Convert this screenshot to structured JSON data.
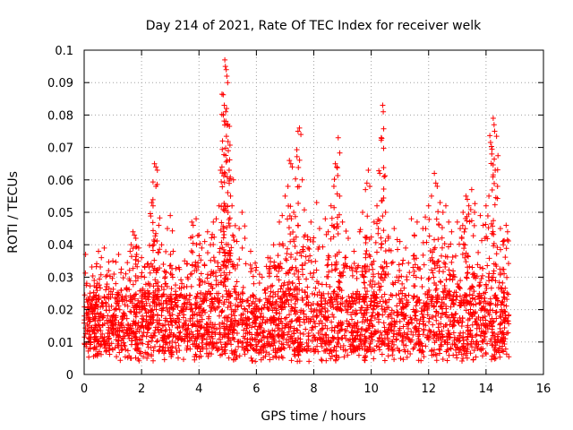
{
  "chart_data": {
    "type": "scatter",
    "title": "Day 214 of 2021, Rate Of TEC Index for receiver welk",
    "xlabel": "GPS time / hours",
    "ylabel": "ROTI / TECUs",
    "xlim": [
      0,
      16
    ],
    "ylim": [
      0,
      0.1
    ],
    "xticks": [
      0,
      2,
      4,
      6,
      8,
      10,
      12,
      14,
      16
    ],
    "xtick_labels": [
      "0",
      "2",
      "4",
      "6",
      "8",
      "10",
      "12",
      "14",
      "16"
    ],
    "yticks": [
      0,
      0.01,
      0.02,
      0.03,
      0.04,
      0.05,
      0.06,
      0.07,
      0.08,
      0.09,
      0.1
    ],
    "ytick_labels": [
      "0",
      "0.01",
      "0.02",
      "0.03",
      "0.04",
      "0.05",
      "0.06",
      "0.07",
      "0.08",
      "0.09",
      "0.1"
    ],
    "grid": true,
    "marker": "+",
    "color": "#ff0000",
    "x_data_range": [
      0,
      14.8
    ],
    "series": [
      {
        "name": "ROTI",
        "points": [
          [
            0.05,
            0.037
          ],
          [
            0.2,
            0.024
          ],
          [
            0.35,
            0.029
          ],
          [
            0.5,
            0.038
          ],
          [
            0.6,
            0.036
          ],
          [
            0.7,
            0.039
          ],
          [
            0.85,
            0.032
          ],
          [
            1.0,
            0.035
          ],
          [
            1.1,
            0.028
          ],
          [
            1.2,
            0.037
          ],
          [
            1.3,
            0.026
          ],
          [
            1.45,
            0.031
          ],
          [
            1.6,
            0.038
          ],
          [
            1.7,
            0.044
          ],
          [
            1.75,
            0.043
          ],
          [
            1.8,
            0.042
          ],
          [
            1.9,
            0.039
          ],
          [
            2.0,
            0.036
          ],
          [
            2.1,
            0.03
          ],
          [
            2.2,
            0.034
          ],
          [
            2.35,
            0.053
          ],
          [
            2.4,
            0.052
          ],
          [
            2.45,
            0.065
          ],
          [
            2.5,
            0.064
          ],
          [
            2.55,
            0.063
          ],
          [
            2.5,
            0.058
          ],
          [
            2.6,
            0.046
          ],
          [
            2.7,
            0.04
          ],
          [
            2.9,
            0.045
          ],
          [
            3.0,
            0.049
          ],
          [
            3.1,
            0.038
          ],
          [
            3.3,
            0.033
          ],
          [
            3.5,
            0.035
          ],
          [
            3.6,
            0.03
          ],
          [
            3.75,
            0.047
          ],
          [
            3.8,
            0.046
          ],
          [
            3.9,
            0.048
          ],
          [
            4.0,
            0.043
          ],
          [
            4.1,
            0.039
          ],
          [
            4.2,
            0.041
          ],
          [
            4.3,
            0.044
          ],
          [
            4.4,
            0.04
          ],
          [
            4.5,
            0.047
          ],
          [
            4.6,
            0.048
          ],
          [
            4.7,
            0.052
          ],
          [
            4.75,
            0.063
          ],
          [
            4.8,
            0.064
          ],
          [
            4.82,
            0.072
          ],
          [
            4.85,
            0.08
          ],
          [
            4.88,
            0.083
          ],
          [
            4.9,
            0.097
          ],
          [
            4.92,
            0.095
          ],
          [
            4.95,
            0.094
          ],
          [
            4.97,
            0.092
          ],
          [
            5.0,
            0.09
          ],
          [
            4.93,
            0.081
          ],
          [
            4.96,
            0.082
          ],
          [
            4.98,
            0.066
          ],
          [
            5.05,
            0.063
          ],
          [
            5.1,
            0.055
          ],
          [
            5.15,
            0.052
          ],
          [
            5.2,
            0.06
          ],
          [
            5.4,
            0.045
          ],
          [
            5.5,
            0.05
          ],
          [
            5.6,
            0.042
          ],
          [
            5.8,
            0.038
          ],
          [
            6.0,
            0.033
          ],
          [
            6.2,
            0.03
          ],
          [
            6.4,
            0.036
          ],
          [
            6.6,
            0.04
          ],
          [
            6.8,
            0.047
          ],
          [
            6.9,
            0.049
          ],
          [
            7.0,
            0.055
          ],
          [
            7.1,
            0.058
          ],
          [
            7.15,
            0.066
          ],
          [
            7.2,
            0.065
          ],
          [
            7.25,
            0.064
          ],
          [
            7.3,
            0.05
          ],
          [
            7.45,
            0.075
          ],
          [
            7.5,
            0.076
          ],
          [
            7.55,
            0.074
          ],
          [
            7.6,
            0.06
          ],
          [
            7.7,
            0.043
          ],
          [
            7.8,
            0.039
          ],
          [
            7.9,
            0.047
          ],
          [
            8.1,
            0.053
          ],
          [
            8.2,
            0.045
          ],
          [
            8.4,
            0.048
          ],
          [
            8.5,
            0.044
          ],
          [
            8.6,
            0.052
          ],
          [
            8.7,
            0.058
          ],
          [
            8.75,
            0.065
          ],
          [
            8.8,
            0.064
          ],
          [
            8.85,
            0.073
          ],
          [
            8.9,
            0.055
          ],
          [
            9.0,
            0.047
          ],
          [
            9.2,
            0.042
          ],
          [
            9.4,
            0.038
          ],
          [
            9.6,
            0.044
          ],
          [
            9.7,
            0.05
          ],
          [
            9.8,
            0.057
          ],
          [
            9.85,
            0.059
          ],
          [
            9.9,
            0.063
          ],
          [
            9.95,
            0.058
          ],
          [
            10.1,
            0.047
          ],
          [
            10.2,
            0.052
          ],
          [
            10.3,
            0.062
          ],
          [
            10.35,
            0.073
          ],
          [
            10.4,
            0.083
          ],
          [
            10.42,
            0.081
          ],
          [
            10.45,
            0.061
          ],
          [
            10.5,
            0.05
          ],
          [
            10.6,
            0.042
          ],
          [
            10.8,
            0.045
          ],
          [
            11.0,
            0.041
          ],
          [
            11.2,
            0.039
          ],
          [
            11.4,
            0.048
          ],
          [
            11.5,
            0.043
          ],
          [
            11.6,
            0.047
          ],
          [
            11.8,
            0.045
          ],
          [
            12.0,
            0.052
          ],
          [
            12.1,
            0.055
          ],
          [
            12.2,
            0.062
          ],
          [
            12.25,
            0.059
          ],
          [
            12.3,
            0.058
          ],
          [
            12.4,
            0.053
          ],
          [
            12.5,
            0.05
          ],
          [
            12.6,
            0.052
          ],
          [
            12.7,
            0.047
          ],
          [
            12.8,
            0.044
          ],
          [
            13.0,
            0.047
          ],
          [
            13.1,
            0.045
          ],
          [
            13.2,
            0.05
          ],
          [
            13.3,
            0.055
          ],
          [
            13.35,
            0.054
          ],
          [
            13.4,
            0.052
          ],
          [
            13.5,
            0.057
          ],
          [
            13.6,
            0.05
          ],
          [
            13.8,
            0.049
          ],
          [
            13.9,
            0.046
          ],
          [
            14.0,
            0.052
          ],
          [
            14.1,
            0.055
          ],
          [
            14.2,
            0.068
          ],
          [
            14.25,
            0.079
          ],
          [
            14.28,
            0.077
          ],
          [
            14.3,
            0.075
          ],
          [
            14.32,
            0.063
          ],
          [
            14.4,
            0.058
          ],
          [
            14.5,
            0.045
          ],
          [
            14.6,
            0.04
          ],
          [
            14.7,
            0.046
          ],
          [
            14.75,
            0.044
          ]
        ]
      }
    ],
    "background_density": [
      0.007,
      0.025
    ]
  }
}
